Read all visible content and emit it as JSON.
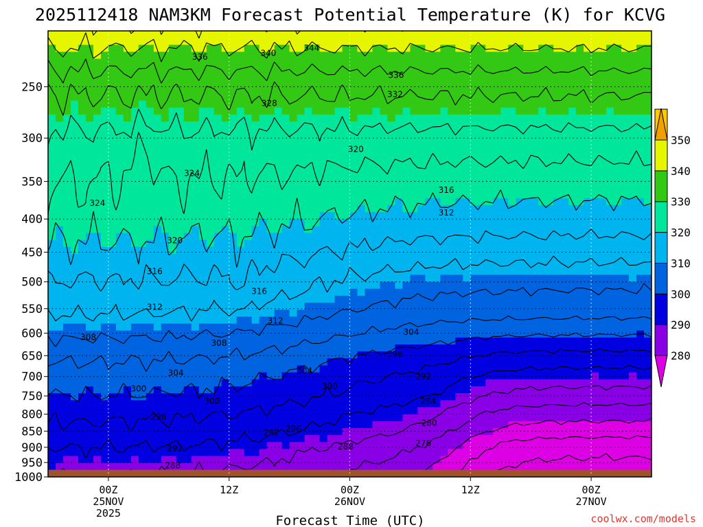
{
  "chart_data": {
    "type": "contour",
    "title": "2025112418 NAM3KM Forecast Potential Temperature (K) for KCVG",
    "xlabel": "Forecast Time (UTC)",
    "ylabel": "",
    "x_ticks": [
      {
        "lines": [
          "00Z",
          "25NOV",
          "2025"
        ],
        "hour": 6
      },
      {
        "lines": [
          "12Z"
        ],
        "hour": 18
      },
      {
        "lines": [
          "00Z",
          "26NOV"
        ],
        "hour": 30
      },
      {
        "lines": [
          "12Z"
        ],
        "hour": 42
      },
      {
        "lines": [
          "00Z",
          "27NOV"
        ],
        "hour": 54
      }
    ],
    "x_range_hours": [
      0,
      60
    ],
    "y_ticks": [
      "250",
      "300",
      "350",
      "400",
      "450",
      "500",
      "550",
      "600",
      "650",
      "700",
      "750",
      "800",
      "850",
      "900",
      "950",
      "1000"
    ],
    "y_range_hpa": [
      205,
      1000
    ],
    "y_scale": "log",
    "colorbar": {
      "labels": [
        "280",
        "290",
        "300",
        "310",
        "320",
        "330",
        "340",
        "350"
      ],
      "colors": [
        "#dd00e4",
        "#8a00e6",
        "#0000e0",
        "#0064e0",
        "#00b4f0",
        "#00e69b",
        "#32c814",
        "#e6f500",
        "#ffc800",
        "#f0a000"
      ],
      "min": 270,
      "max": 360,
      "step": 10,
      "extend": "both"
    },
    "contour_interval_k": 4,
    "contour_labels": [
      {
        "text": "344",
        "hour": 26.2,
        "p": 218
      },
      {
        "text": "340",
        "hour": 21.9,
        "p": 222
      },
      {
        "text": "336",
        "hour": 15.1,
        "p": 225
      },
      {
        "text": "336",
        "hour": 34.6,
        "p": 240
      },
      {
        "text": "332",
        "hour": 34.5,
        "p": 257
      },
      {
        "text": "328",
        "hour": 22.0,
        "p": 265
      },
      {
        "text": "324",
        "hour": 14.3,
        "p": 340
      },
      {
        "text": "324",
        "hour": 4.9,
        "p": 378
      },
      {
        "text": "320",
        "hour": 30.6,
        "p": 312
      },
      {
        "text": "316",
        "hour": 39.6,
        "p": 361
      },
      {
        "text": "312",
        "hour": 39.6,
        "p": 391
      },
      {
        "text": "320",
        "hour": 12.6,
        "p": 432
      },
      {
        "text": "316",
        "hour": 10.6,
        "p": 482
      },
      {
        "text": "316",
        "hour": 21.0,
        "p": 517
      },
      {
        "text": "312",
        "hour": 10.6,
        "p": 547
      },
      {
        "text": "312",
        "hour": 22.6,
        "p": 574
      },
      {
        "text": "308",
        "hour": 4.0,
        "p": 609
      },
      {
        "text": "308",
        "hour": 17.0,
        "p": 622
      },
      {
        "text": "304",
        "hour": 36.1,
        "p": 598
      },
      {
        "text": "296",
        "hour": 34.5,
        "p": 646
      },
      {
        "text": "304",
        "hour": 12.7,
        "p": 691
      },
      {
        "text": "304",
        "hour": 25.5,
        "p": 686
      },
      {
        "text": "292",
        "hour": 37.3,
        "p": 700
      },
      {
        "text": "300",
        "hour": 9.0,
        "p": 731
      },
      {
        "text": "300",
        "hour": 28.0,
        "p": 725
      },
      {
        "text": "300",
        "hour": 16.3,
        "p": 764
      },
      {
        "text": "284",
        "hour": 37.8,
        "p": 764
      },
      {
        "text": "296",
        "hour": 11.0,
        "p": 808
      },
      {
        "text": "280",
        "hour": 37.9,
        "p": 826
      },
      {
        "text": "296",
        "hour": 24.4,
        "p": 843
      },
      {
        "text": "292",
        "hour": 22.2,
        "p": 854
      },
      {
        "text": "276",
        "hour": 37.3,
        "p": 887
      },
      {
        "text": "288",
        "hour": 29.6,
        "p": 898
      },
      {
        "text": "292",
        "hour": 12.6,
        "p": 904
      },
      {
        "text": "288",
        "hour": 12.4,
        "p": 960
      }
    ],
    "surface_pressure_hpa": 975,
    "surface_color": "#a0522d",
    "grid": "dotted"
  },
  "credit": "coolwx.com/models"
}
